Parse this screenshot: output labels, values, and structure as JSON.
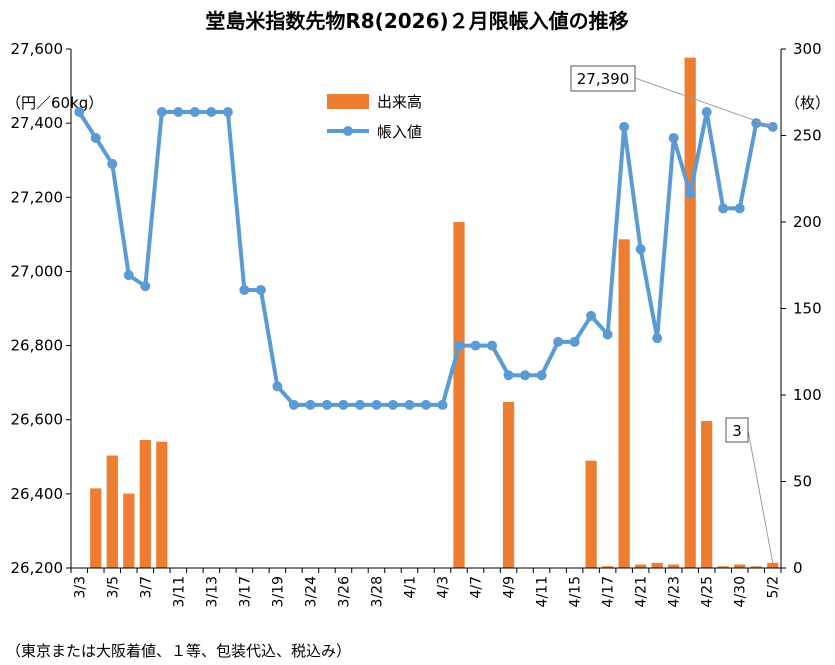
{
  "chart_data": {
    "type": "bar+line",
    "title": "堂島米指数先物R8(2026)２月限帳入値の推移",
    "left_unit": "（円／60kg）",
    "right_unit": "（枚）",
    "note": "（東京または大阪着値、１等、包装代込、税込み）",
    "x_tick_labels": [
      "3/3",
      "3/5",
      "3/7",
      "3/11",
      "3/13",
      "3/17",
      "3/19",
      "3/24",
      "3/26",
      "3/28",
      "4/1",
      "4/3",
      "4/7",
      "4/9",
      "4/11",
      "4/15",
      "4/17",
      "4/21",
      "4/23",
      "4/25",
      "4/30",
      "5/2"
    ],
    "x_tick_index": [
      0,
      2,
      4,
      6,
      8,
      10,
      12,
      14,
      16,
      18,
      20,
      22,
      24,
      26,
      28,
      30,
      32,
      34,
      36,
      38,
      40,
      42
    ],
    "y_left": {
      "min": 26200,
      "max": 27600,
      "step": 200,
      "tick_labels": [
        "26,200",
        "26,400",
        "26,600",
        "26,800",
        "27,000",
        "27,200",
        "27,400",
        "27,600"
      ]
    },
    "y_right": {
      "min": 0,
      "max": 300,
      "step": 50,
      "tick_labels": [
        "0",
        "50",
        "100",
        "150",
        "200",
        "250",
        "300"
      ]
    },
    "series": [
      {
        "name": "出来高",
        "kind": "bar",
        "axis": "right",
        "color": "#ED7D31",
        "values": [
          0,
          46,
          65,
          43,
          74,
          73,
          0,
          0,
          0,
          0,
          0,
          0,
          0,
          0,
          0,
          0,
          0,
          0,
          0,
          0,
          0,
          0,
          0,
          200,
          0,
          0,
          96,
          0,
          0,
          0,
          0,
          62,
          1,
          190,
          2,
          3,
          2,
          295,
          85,
          1,
          2,
          1,
          3
        ]
      },
      {
        "name": "帳入値",
        "kind": "line",
        "axis": "left",
        "color": "#5B9BD5",
        "values": [
          27430,
          27360,
          27290,
          26990,
          26960,
          27430,
          27430,
          27430,
          27430,
          27430,
          26950,
          26950,
          26690,
          26640,
          26640,
          26640,
          26640,
          26640,
          26640,
          26640,
          26640,
          26640,
          26640,
          26800,
          26800,
          26800,
          26720,
          26720,
          26720,
          26810,
          26810,
          26880,
          26830,
          27390,
          27060,
          26820,
          27360,
          27210,
          27430,
          27170,
          27170,
          27400,
          27390
        ]
      }
    ],
    "legend": {
      "position": "top-center",
      "items": [
        "出来高",
        "帳入値"
      ]
    },
    "annotations": [
      {
        "text": "27,390",
        "target_series": "帳入値",
        "target_index": 42
      },
      {
        "text": "3",
        "target_series": "出来高",
        "target_index": 42
      }
    ]
  }
}
